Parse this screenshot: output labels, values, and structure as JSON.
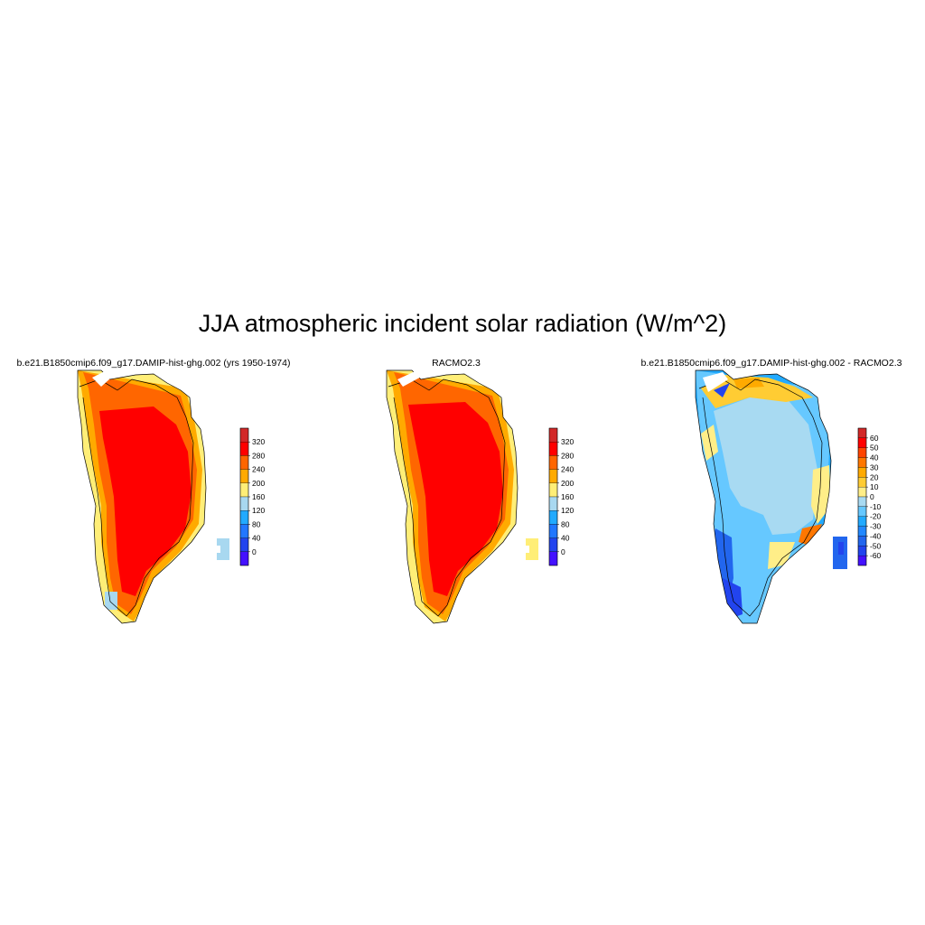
{
  "title": "JJA atmospheric incident solar radiation (W/m^2)",
  "panels": [
    {
      "title": "b.e21.B1850cmip6.f09_g17.DAMIP-hist-ghg.002 (yrs 1950-1974)",
      "colorbar": {
        "labels": [
          "320",
          "280",
          "240",
          "200",
          "160",
          "120",
          "80",
          "40",
          "0"
        ],
        "colors": [
          "#d22828",
          "#ff0000",
          "#ff6600",
          "#ffaa00",
          "#ffee77",
          "#a8d8f0",
          "#22aaff",
          "#2277ff",
          "#2244ee",
          "#4411ff"
        ]
      }
    },
    {
      "title": "RACMO2.3",
      "colorbar": {
        "labels": [
          "320",
          "280",
          "240",
          "200",
          "160",
          "120",
          "80",
          "40",
          "0"
        ],
        "colors": [
          "#d22828",
          "#ff0000",
          "#ff6600",
          "#ffaa00",
          "#ffee77",
          "#a8d8f0",
          "#22aaff",
          "#2277ff",
          "#2244ee",
          "#4411ff"
        ]
      }
    },
    {
      "title": "b.e21.B1850cmip6.f09_g17.DAMIP-hist-ghg.002 - RACMO2.3",
      "colorbar": {
        "labels": [
          "60",
          "50",
          "40",
          "30",
          "20",
          "10",
          "0",
          "-10",
          "-20",
          "-30",
          "-40",
          "-50",
          "-60"
        ],
        "colors": [
          "#d22828",
          "#ff0000",
          "#ff4400",
          "#ff7700",
          "#ffaa00",
          "#ffcc33",
          "#ffee88",
          "#a8daf2",
          "#66c8ff",
          "#22aaff",
          "#2288ff",
          "#2266ee",
          "#2244ee",
          "#4411ff"
        ]
      }
    }
  ]
}
